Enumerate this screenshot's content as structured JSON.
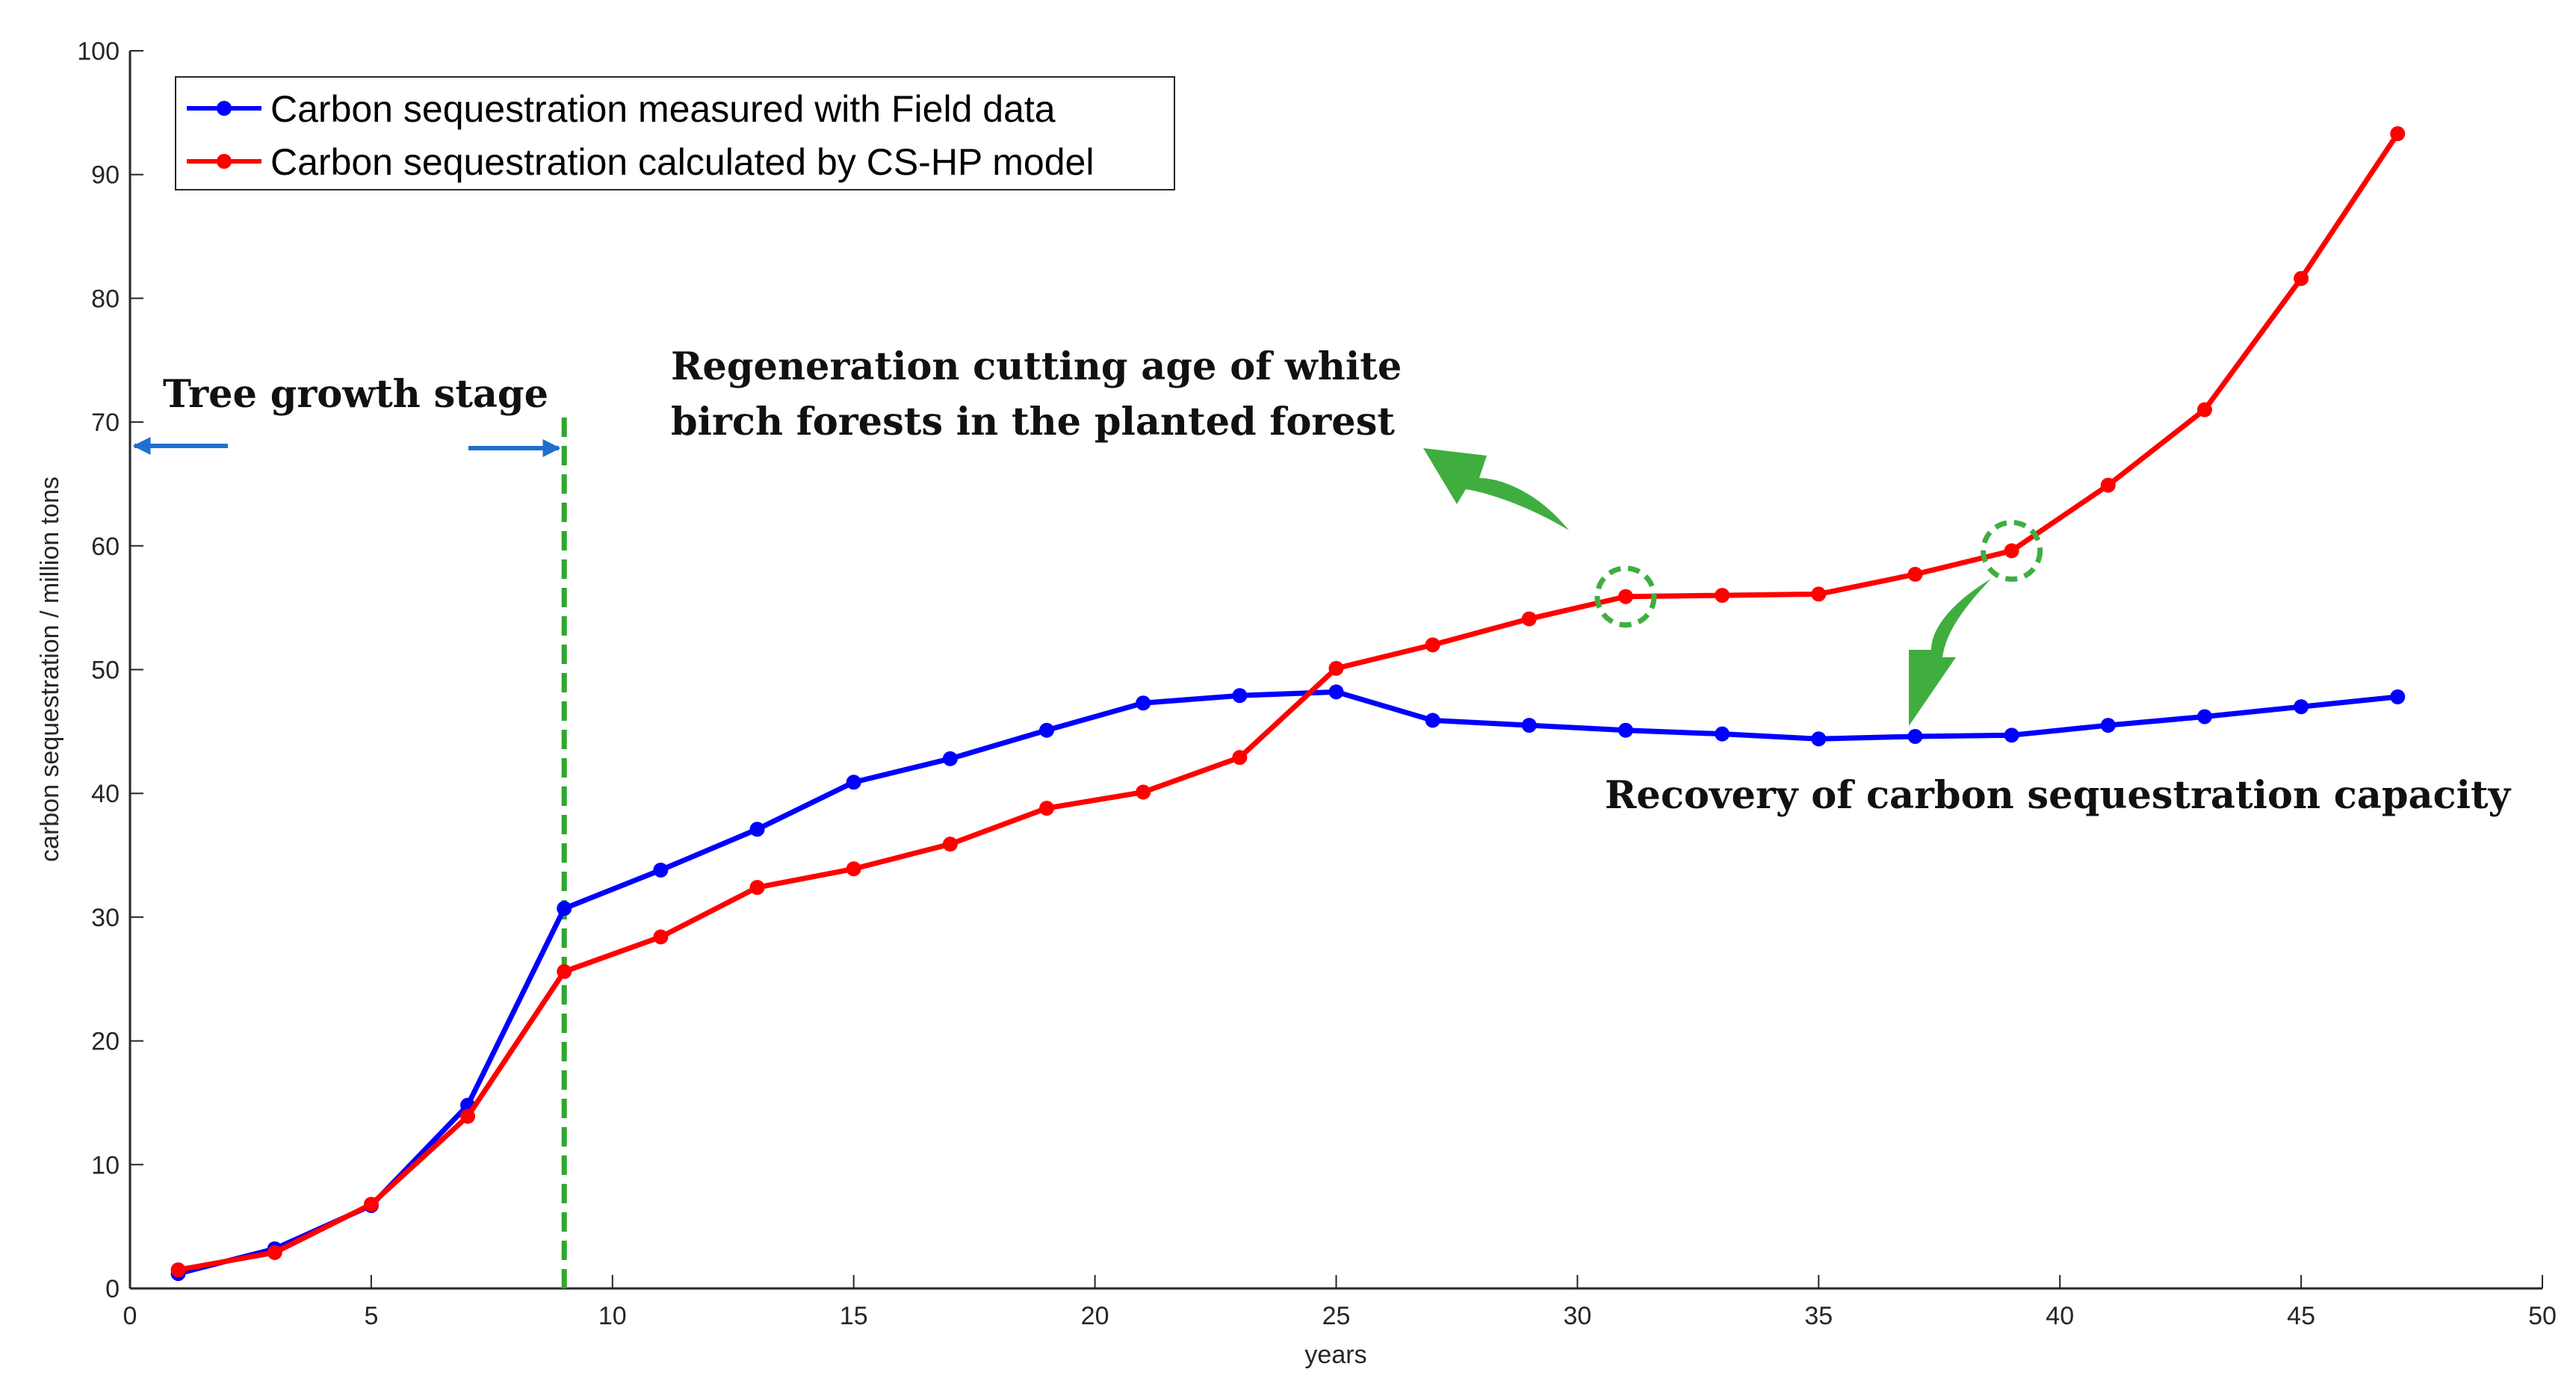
{
  "chart_data": {
    "type": "line",
    "title": "",
    "xlabel": "years",
    "ylabel": "carbon sequestration  /  million tons",
    "xlim": [
      0,
      50
    ],
    "ylim": [
      0,
      100
    ],
    "xticks": [
      0,
      5,
      10,
      15,
      20,
      25,
      30,
      35,
      40,
      45,
      50
    ],
    "yticks": [
      0,
      10,
      20,
      30,
      40,
      50,
      60,
      70,
      80,
      90,
      100
    ],
    "grid": false,
    "legend_position": "top-left",
    "series": [
      {
        "name": "Carbon sequestration measured with Field data",
        "color": "#0000ff",
        "x": [
          1,
          3,
          5,
          7,
          9,
          11,
          13,
          15,
          17,
          19,
          21,
          23,
          25,
          27,
          29,
          31,
          33,
          35,
          37,
          39,
          41,
          43,
          45,
          47
        ],
        "y": [
          1.2,
          3.2,
          6.7,
          14.8,
          30.7,
          33.8,
          37.1,
          40.9,
          42.8,
          45.1,
          47.3,
          47.9,
          48.2,
          45.9,
          45.5,
          45.1,
          44.8,
          44.4,
          44.6,
          44.7,
          45.5,
          46.2,
          47.0,
          47.8
        ]
      },
      {
        "name": "Carbon sequestration calculated by CS-HP model",
        "color": "#ff0000",
        "x": [
          1,
          3,
          5,
          7,
          9,
          11,
          13,
          15,
          17,
          19,
          21,
          23,
          25,
          27,
          29,
          31,
          33,
          35,
          37,
          39,
          41,
          43,
          45,
          47
        ],
        "y": [
          1.5,
          2.9,
          6.8,
          13.9,
          25.6,
          28.4,
          32.4,
          33.9,
          35.9,
          38.8,
          40.1,
          42.9,
          50.1,
          52.0,
          54.1,
          55.9,
          56.0,
          56.1,
          57.7,
          59.6,
          64.9,
          71.0,
          81.6,
          93.3
        ]
      }
    ],
    "reference_line": {
      "x": 9,
      "style": "dashed",
      "color": "#2ea82e"
    },
    "highlight_points": [
      {
        "x": 31,
        "y": 55.9
      },
      {
        "x": 39,
        "y": 59.6
      }
    ],
    "annotations": {
      "growth_stage": "Tree growth stage",
      "regeneration_line1": "Regeneration cutting age of white",
      "regeneration_line2": "birch forests in the planted forest",
      "recovery": "Recovery of carbon sequestration capacity"
    },
    "colors": {
      "axis": "#262626",
      "arrow_blue": "#1f6fd0",
      "arrow_green": "#3fae3f"
    }
  }
}
